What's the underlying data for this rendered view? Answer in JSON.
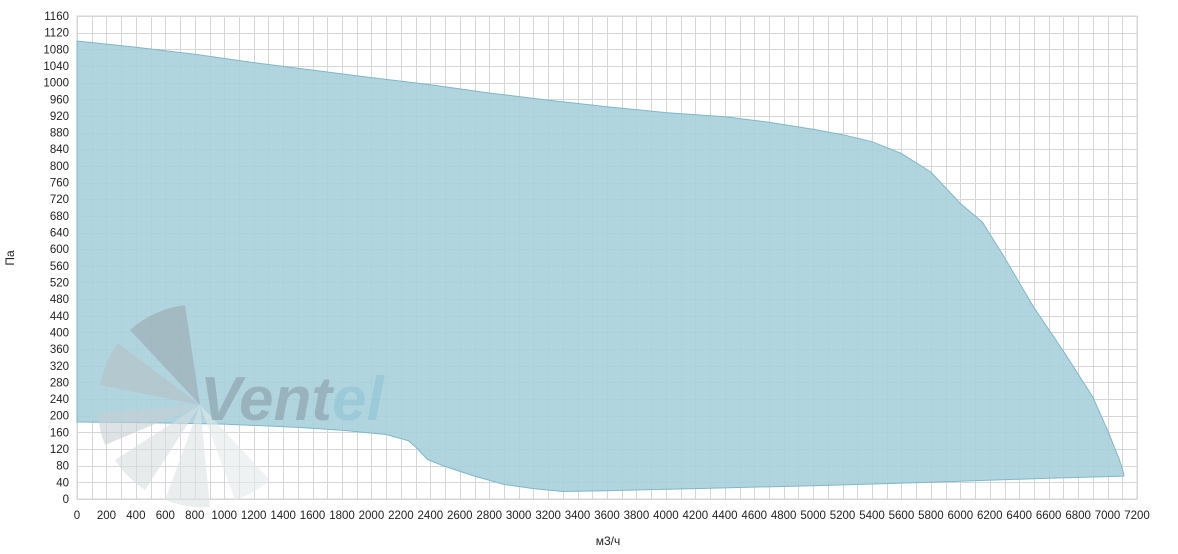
{
  "chart_data": {
    "type": "area",
    "xlabel": "м3/ч",
    "ylabel": "Па",
    "xlim": [
      0,
      7200
    ],
    "ylim": [
      0,
      1160
    ],
    "x_ticks": [
      0,
      200,
      400,
      600,
      800,
      1000,
      1200,
      1400,
      1600,
      1800,
      2000,
      2200,
      2400,
      2600,
      2800,
      3000,
      3200,
      3400,
      3600,
      3800,
      4000,
      4200,
      4400,
      4600,
      4800,
      5000,
      5200,
      5400,
      5600,
      5800,
      6000,
      6200,
      6400,
      6600,
      6800,
      7000,
      7200
    ],
    "y_ticks": [
      0,
      40,
      80,
      120,
      160,
      200,
      240,
      280,
      320,
      360,
      400,
      440,
      480,
      520,
      560,
      600,
      640,
      680,
      720,
      760,
      800,
      840,
      880,
      920,
      960,
      1000,
      1040,
      1080,
      1120,
      1160
    ],
    "x_minor_step": 100,
    "grid": true,
    "fill_color": "#a9d0dc",
    "edge_color": "#7fb7c9",
    "upper_boundary": [
      {
        "x": 0,
        "y": 1100
      },
      {
        "x": 400,
        "y": 1085
      },
      {
        "x": 800,
        "y": 1068
      },
      {
        "x": 1200,
        "y": 1048
      },
      {
        "x": 1600,
        "y": 1030
      },
      {
        "x": 2000,
        "y": 1012
      },
      {
        "x": 2400,
        "y": 995
      },
      {
        "x": 2800,
        "y": 975
      },
      {
        "x": 3200,
        "y": 958
      },
      {
        "x": 3600,
        "y": 942
      },
      {
        "x": 4000,
        "y": 928
      },
      {
        "x": 4400,
        "y": 918
      },
      {
        "x": 4700,
        "y": 905
      },
      {
        "x": 5000,
        "y": 888
      },
      {
        "x": 5200,
        "y": 875
      },
      {
        "x": 5400,
        "y": 858
      },
      {
        "x": 5600,
        "y": 830
      },
      {
        "x": 5800,
        "y": 785
      },
      {
        "x": 6000,
        "y": 710
      },
      {
        "x": 6150,
        "y": 665
      },
      {
        "x": 6300,
        "y": 580
      },
      {
        "x": 6500,
        "y": 460
      },
      {
        "x": 6700,
        "y": 355
      },
      {
        "x": 6900,
        "y": 245
      },
      {
        "x": 7000,
        "y": 165
      },
      {
        "x": 7080,
        "y": 95
      },
      {
        "x": 7110,
        "y": 60
      }
    ],
    "lower_boundary": [
      {
        "x": 0,
        "y": 185
      },
      {
        "x": 500,
        "y": 183
      },
      {
        "x": 1000,
        "y": 180
      },
      {
        "x": 1500,
        "y": 172
      },
      {
        "x": 1800,
        "y": 165
      },
      {
        "x": 2100,
        "y": 155
      },
      {
        "x": 2250,
        "y": 140
      },
      {
        "x": 2300,
        "y": 125
      },
      {
        "x": 2380,
        "y": 95
      },
      {
        "x": 2500,
        "y": 78
      },
      {
        "x": 2700,
        "y": 55
      },
      {
        "x": 2900,
        "y": 35
      },
      {
        "x": 3100,
        "y": 25
      },
      {
        "x": 3300,
        "y": 18
      },
      {
        "x": 3600,
        "y": 20
      },
      {
        "x": 4200,
        "y": 25
      },
      {
        "x": 5000,
        "y": 32
      },
      {
        "x": 5800,
        "y": 40
      },
      {
        "x": 6600,
        "y": 50
      },
      {
        "x": 7110,
        "y": 55
      }
    ]
  },
  "watermark": {
    "text": "VentEl",
    "text_dark_part": "Vent",
    "text_light_part": "el",
    "color_dark": "#8a9ea8",
    "color_light": "#8fc3d6"
  }
}
